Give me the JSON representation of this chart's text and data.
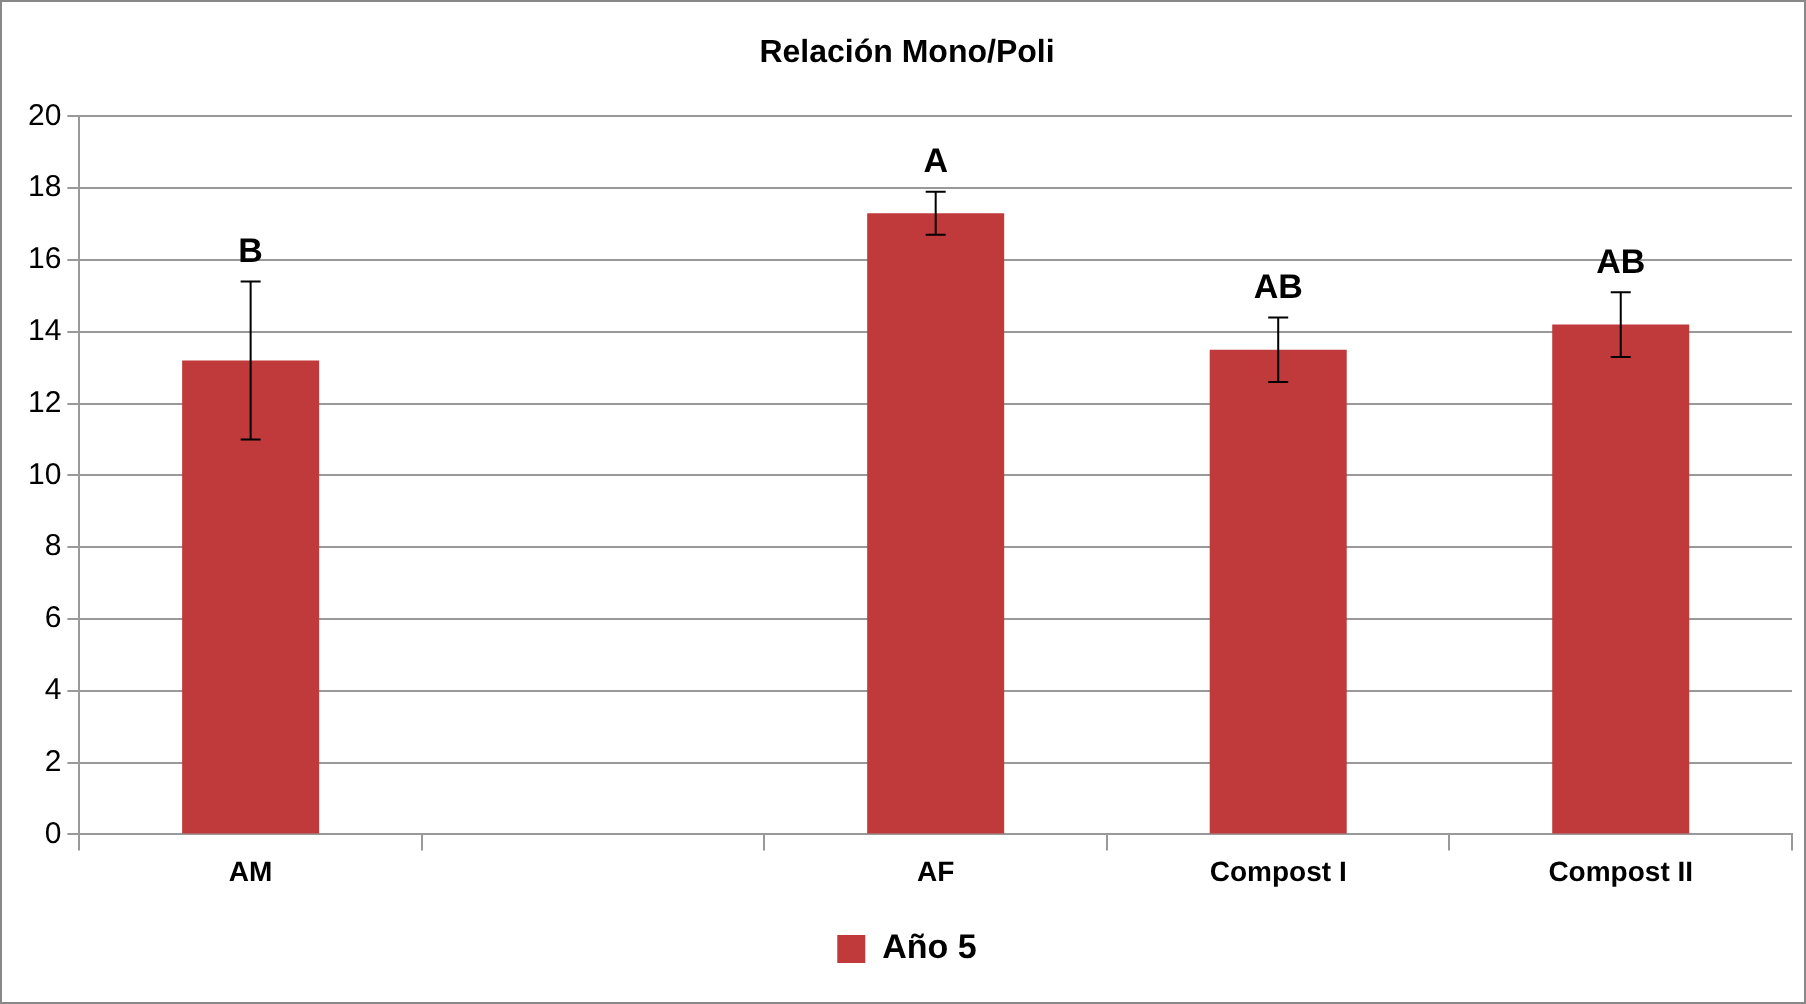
{
  "chart_data": {
    "type": "bar",
    "title": "Relación Mono/Poli",
    "categories": [
      "AM",
      null,
      "AF",
      "Compost I",
      "Compost II"
    ],
    "series": [
      {
        "name": "Año 5",
        "color": "#c0393b",
        "values": [
          13.2,
          null,
          17.3,
          13.5,
          14.2
        ],
        "errors": [
          2.2,
          null,
          0.6,
          0.9,
          0.9
        ]
      }
    ],
    "ylim": [
      0,
      20
    ],
    "yticks": [
      0,
      2,
      4,
      6,
      8,
      10,
      12,
      14,
      16,
      18,
      20
    ],
    "grid": "y",
    "legend": "bottom",
    "annotations": [
      {
        "text": "B",
        "x": "AM",
        "y": 15.4
      },
      {
        "text": "A",
        "x": "AF",
        "y": 17.9
      },
      {
        "text": "AB",
        "x": "Compost I",
        "y": 14.4
      },
      {
        "text": "AB",
        "x": "Compost II",
        "y": 15.1
      }
    ]
  }
}
